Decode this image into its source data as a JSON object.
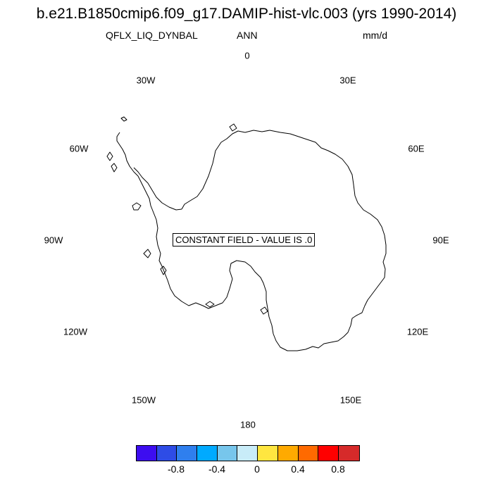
{
  "title": "b.e21.B1850cmip6.f09_g17.DAMIP-hist-vlc.003 (yrs 1990-2014)",
  "variable": "QFLX_LIQ_DYNBAL",
  "season": "ANN",
  "units": "mm/d",
  "message": "CONSTANT FIELD - VALUE IS .0",
  "longitude_labels": {
    "lon_0": "0",
    "lon_30e": "30E",
    "lon_60e": "60E",
    "lon_90e": "90E",
    "lon_120e": "120E",
    "lon_150e": "150E",
    "lon_180": "180",
    "lon_150w": "150W",
    "lon_120w": "120W",
    "lon_90w": "90W",
    "lon_60w": "60W",
    "lon_30w": "30W"
  },
  "colorbar": {
    "colors": [
      "#3d0df0",
      "#2e4ce6",
      "#2f7fee",
      "#00aaff",
      "#77c6ec",
      "#c8ecf8",
      "#ffe640",
      "#ffaa00",
      "#ff6a00",
      "#ff0000",
      "#d62a2a"
    ],
    "tick_labels": [
      "-0.8",
      "-0.4",
      "0",
      "0.4",
      "0.8"
    ]
  }
}
